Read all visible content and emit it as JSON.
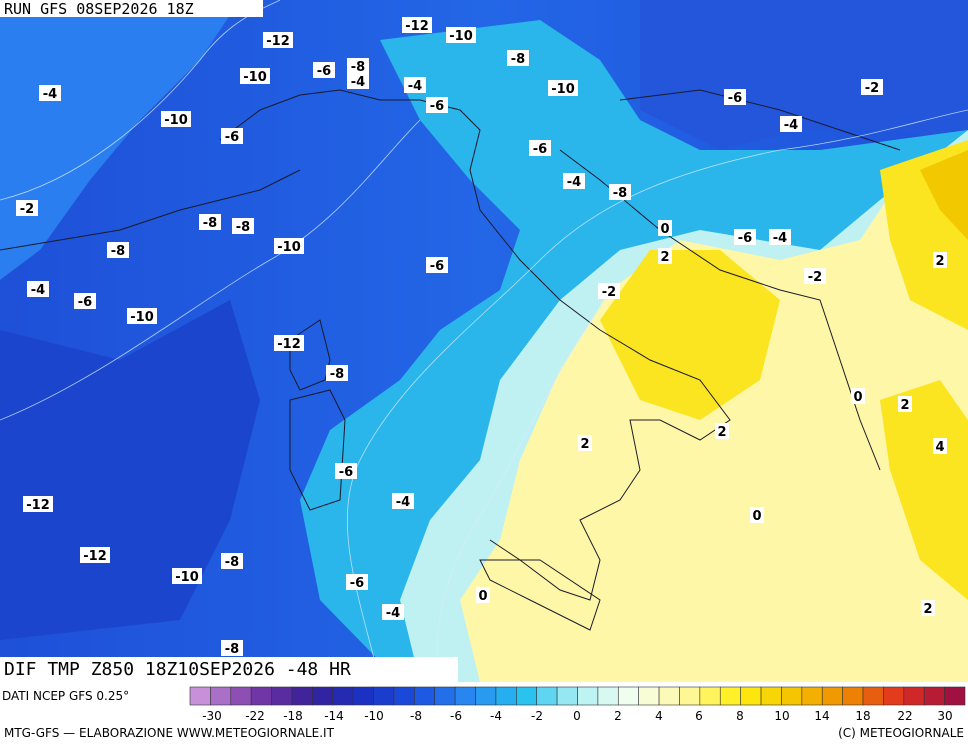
{
  "header": {
    "run": "RUN GFS 08SEP2026 18Z",
    "field": "DIF TMP Z850 18Z10SEP2026 -48 HR"
  },
  "footer": {
    "source": "DATI NCEP GFS 0.25°",
    "credits": "MTG-GFS — ELABORAZIONE WWW.METEOGIORNALE.IT",
    "copyright": "(C) METEOGIORNALE"
  },
  "scale": {
    "labels": [
      -30,
      -22,
      -18,
      -14,
      -10,
      -8,
      -6,
      -4,
      -2,
      0,
      2,
      4,
      6,
      8,
      10,
      14,
      18,
      22,
      30
    ]
  },
  "contours": [
    -12,
    -12,
    -10,
    -8,
    -8,
    -6,
    -4,
    -4,
    -10,
    -4,
    -10,
    -6,
    -10,
    -6,
    -6,
    -2,
    -4,
    -6,
    -4,
    -8,
    -2,
    -8,
    -8,
    -10,
    0,
    -6,
    -4,
    2,
    -8,
    -6,
    -2,
    2,
    -4,
    -6,
    -2,
    -10,
    -12,
    -8,
    0,
    2,
    2,
    2,
    4,
    -6,
    -4,
    -12,
    0,
    -12,
    -8,
    -10,
    -6,
    -4,
    0,
    2,
    -8
  ]
}
